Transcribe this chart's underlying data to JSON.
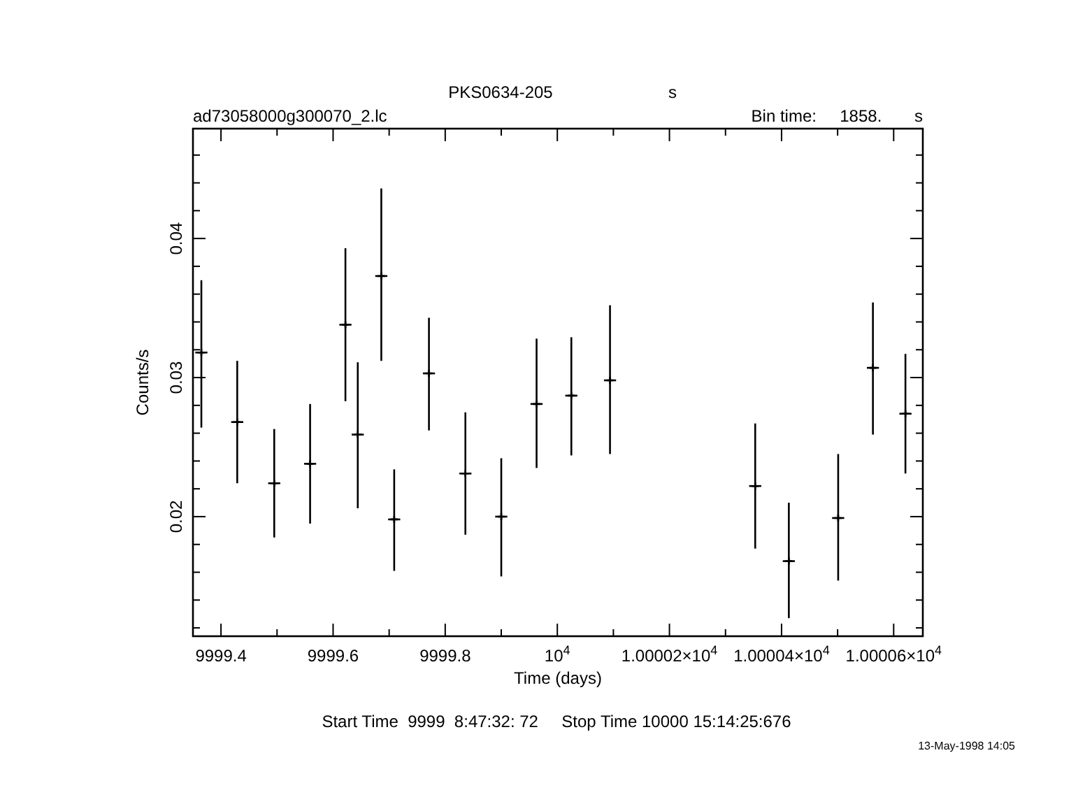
{
  "chart_data": {
    "type": "scatter",
    "title": "PKS0634-205",
    "subtitle": "ad73058000g300070_2.lc",
    "xlabel": "Time (days)",
    "ylabel": "Counts/s",
    "annotations": [
      "s",
      "Bin time:     1858.       s",
      "Start Time  9999  8:47:32: 72     Stop Time 10000 15:14:25:676",
      "13-May-1998 14:05"
    ],
    "marker": "cross",
    "grid": false,
    "xlim": [
      9999.35,
      10000.652
    ],
    "ylim": [
      0.0114,
      0.0479
    ],
    "xticks": [
      9999.4,
      {
        "value": 9999.5,
        "label": null
      },
      9999.6,
      {
        "value": 9999.7,
        "label": null
      },
      9999.8,
      {
        "value": 9999.9,
        "label": null
      },
      {
        "value": 10000,
        "label": "10$^{4}$"
      },
      {
        "value": 10000.1,
        "label": null
      },
      {
        "value": 10000.2,
        "label": "1.00002×10$^{4}$"
      },
      {
        "value": 10000.3,
        "label": null
      },
      {
        "value": 10000.4,
        "label": "1.00004×10$^{4}$"
      },
      {
        "value": 10000.5,
        "label": null
      },
      {
        "value": 10000.6,
        "label": "1.00006×10$^{4}$"
      }
    ],
    "yticks": [
      {
        "value": 0.012,
        "label": null
      },
      {
        "value": 0.014,
        "label": null
      },
      {
        "value": 0.016,
        "label": null
      },
      {
        "value": 0.018,
        "label": null
      },
      0.02,
      {
        "value": 0.022,
        "label": null
      },
      {
        "value": 0.024,
        "label": null
      },
      {
        "value": 0.026,
        "label": null
      },
      {
        "value": 0.028,
        "label": null
      },
      0.03,
      {
        "value": 0.032,
        "label": null
      },
      {
        "value": 0.034,
        "label": null
      },
      {
        "value": 0.036,
        "label": null
      },
      {
        "value": 0.038,
        "label": null
      },
      0.04,
      {
        "value": 0.042,
        "label": null
      },
      {
        "value": 0.044,
        "label": null
      },
      {
        "value": 0.046,
        "label": null
      }
    ],
    "series": [
      {
        "color": "#000000",
        "x": [
          9999.365,
          9999.429,
          9999.495,
          9999.559,
          9999.622,
          9999.644,
          9999.686,
          9999.709,
          9999.771,
          9999.836,
          9999.9,
          9999.963,
          10000.025,
          10000.094,
          10000.353,
          10000.413,
          10000.501,
          10000.563,
          10000.621
        ],
        "values": [
          0.0318,
          0.0268,
          0.0224,
          0.0238,
          0.0338,
          0.0259,
          0.0373,
          0.0198,
          0.0303,
          0.0231,
          0.02,
          0.0281,
          0.0287,
          0.0298,
          0.0222,
          0.0168,
          0.0199,
          0.0307,
          0.0274
        ],
        "errors": [
          [
            0.0264,
            0.037
          ],
          [
            0.0224,
            0.0312
          ],
          [
            0.0185,
            0.0263
          ],
          [
            0.0195,
            0.0281
          ],
          [
            0.0283,
            0.0393
          ],
          [
            0.0206,
            0.0311
          ],
          [
            0.0312,
            0.0436
          ],
          [
            0.0161,
            0.0234
          ],
          [
            0.0262,
            0.0343
          ],
          [
            0.0187,
            0.0275
          ],
          [
            0.0157,
            0.0242
          ],
          [
            0.0235,
            0.0328
          ],
          [
            0.0244,
            0.0329
          ],
          [
            0.0245,
            0.0352
          ],
          [
            0.0177,
            0.0267
          ],
          [
            0.0127,
            0.021
          ],
          [
            0.0154,
            0.0245
          ],
          [
            0.0259,
            0.0354
          ],
          [
            0.0231,
            0.0317
          ]
        ],
        "xerrors": [
          0.0108,
          0.0108,
          0.0108,
          0.0108,
          0.0108,
          0.0108,
          0.0108,
          0.0108,
          0.0108,
          0.0108,
          0.0108,
          0.0108,
          0.0108,
          0.0108,
          0.0108,
          0.0108,
          0.0108,
          0.0108,
          0.0108
        ]
      }
    ]
  }
}
